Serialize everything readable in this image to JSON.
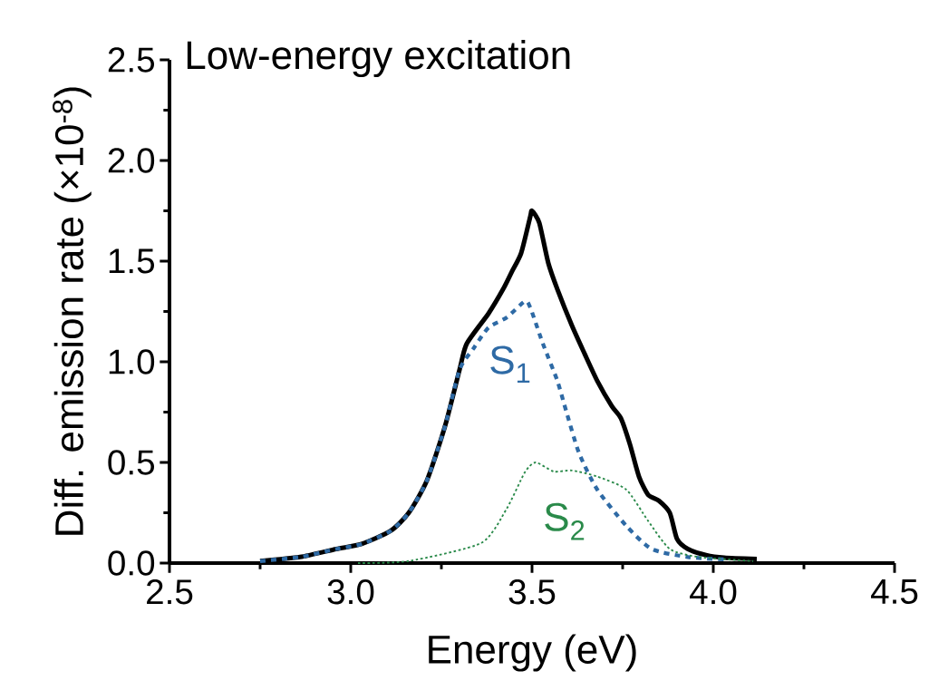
{
  "chart_data": {
    "type": "line",
    "title": "Low-energy excitation",
    "xlabel": "Energy (eV)",
    "ylabel": "Diff. emission rate (×10$^{-8}$)",
    "xlim": [
      2.5,
      4.5
    ],
    "ylim": [
      0,
      2.5
    ],
    "xticks": [
      2.5,
      {
        "value": 3,
        "label": "3.0"
      },
      3.5,
      {
        "value": 4,
        "label": "4.0"
      },
      4.5
    ],
    "yticks": [
      {
        "value": 0,
        "label": "0.0"
      },
      0.5,
      {
        "value": 1,
        "label": "1.0"
      },
      1.5,
      {
        "value": 2,
        "label": "2.0"
      },
      2.5
    ],
    "grid": false,
    "series": [
      {
        "color": "#000000",
        "line_style": "solid",
        "x": [
          2.75,
          2.86,
          2.96,
          3.03,
          3.11,
          3.16,
          3.21,
          3.26,
          3.3,
          3.32,
          3.38,
          3.42,
          3.445,
          3.47,
          3.495,
          3.5,
          3.52,
          3.545,
          3.57,
          3.61,
          3.645,
          3.68,
          3.72,
          3.745,
          3.77,
          3.795,
          3.82,
          3.85,
          3.88,
          3.9,
          3.93,
          3.98,
          4.03,
          4.12
        ],
        "values": [
          0.01,
          0.03,
          0.07,
          0.095,
          0.16,
          0.25,
          0.41,
          0.68,
          0.96,
          1.09,
          1.24,
          1.36,
          1.45,
          1.54,
          1.72,
          1.75,
          1.69,
          1.49,
          1.36,
          1.18,
          1.04,
          0.905,
          0.78,
          0.72,
          0.59,
          0.43,
          0.34,
          0.31,
          0.25,
          0.12,
          0.07,
          0.04,
          0.027,
          0.02
        ]
      },
      {
        "name": "S$_{1}$",
        "color": "#2e6aa5",
        "line_style": "dashed",
        "x": [
          2.75,
          2.86,
          2.96,
          3.03,
          3.11,
          3.16,
          3.21,
          3.26,
          3.3,
          3.34,
          3.38,
          3.43,
          3.48,
          3.495,
          3.53,
          3.57,
          3.595,
          3.63,
          3.68,
          3.76,
          3.83,
          3.93,
          4.03
        ],
        "values": [
          0.01,
          0.03,
          0.07,
          0.095,
          0.16,
          0.25,
          0.41,
          0.68,
          0.96,
          1.07,
          1.17,
          1.22,
          1.3,
          1.27,
          1.09,
          0.905,
          0.75,
          0.545,
          0.365,
          0.185,
          0.07,
          0.03,
          0.018
        ]
      },
      {
        "name": "S$_{2}$",
        "color": "#2a8a4a",
        "line_style": "dotted",
        "x": [
          3.02,
          3.16,
          3.36,
          3.43,
          3.48,
          3.51,
          3.56,
          3.61,
          3.68,
          3.76,
          3.82,
          3.88,
          3.96,
          4.11
        ],
        "values": [
          0.0,
          0.01,
          0.1,
          0.27,
          0.45,
          0.5,
          0.455,
          0.46,
          0.43,
          0.365,
          0.21,
          0.07,
          0.03,
          0.01
        ]
      }
    ]
  }
}
